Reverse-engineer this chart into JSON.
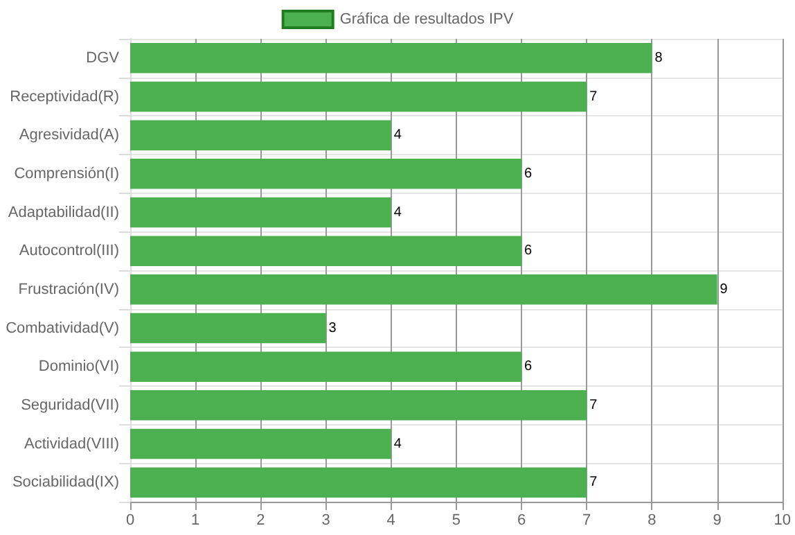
{
  "chart_data": {
    "type": "bar",
    "orientation": "horizontal",
    "categories": [
      "DGV",
      "Receptividad(R)",
      "Agresividad(A)",
      "Comprensión(I)",
      "Adaptabilidad(II)",
      "Autocontrol(III)",
      "Frustración(IV)",
      "Combatividad(V)",
      "Dominio(VI)",
      "Seguridad(VII)",
      "Actividad(VIII)",
      "Sociabilidad(IX)"
    ],
    "series": [
      {
        "name": "Gráfica de resultados IPV",
        "color": "#4caf50",
        "values": [
          8,
          7,
          4,
          6,
          4,
          6,
          9,
          3,
          6,
          7,
          4,
          7
        ]
      }
    ],
    "xlim": [
      0,
      10
    ],
    "xticks": [
      0,
      1,
      2,
      3,
      4,
      5,
      6,
      7,
      8,
      9,
      10
    ],
    "grid": true,
    "legend": "top",
    "data_labels": true
  }
}
